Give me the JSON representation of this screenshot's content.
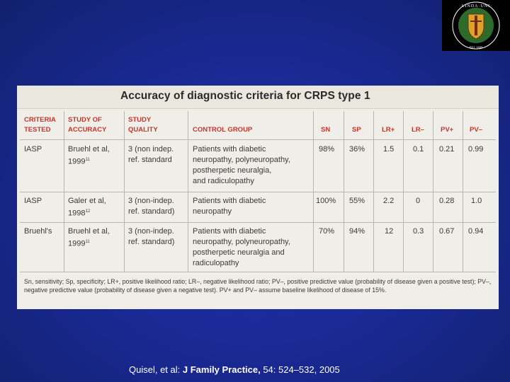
{
  "table": {
    "title": "Accuracy of diagnostic criteria for CRPS type 1",
    "headers": {
      "criteria": [
        "CRITERIA",
        "TESTED"
      ],
      "study": [
        "STUDY OF",
        "ACCURACY"
      ],
      "quality": [
        "STUDY",
        "QUALITY"
      ],
      "control": "CONTROL GROUP",
      "sn": "SN",
      "sp": "SP",
      "lrp": "LR+",
      "lrm": "LR–",
      "pvp": "PV+",
      "pvm": "PV–"
    },
    "rows": [
      {
        "criteria": "IASP",
        "study": [
          "Bruehl et al,",
          "1999"
        ],
        "study_ref": "11",
        "quality": [
          "3 (non indep.",
          "ref. standard"
        ],
        "control": [
          "Patients with diabetic",
          "neuropathy, polyneuropathy,",
          "postherpetic neuralgia,",
          "and radiculopathy"
        ],
        "sn": "98%",
        "sp": "36%",
        "lrp": "1.5",
        "lrm": "0.1",
        "pvp": "0.21",
        "pvm": "0.99"
      },
      {
        "criteria": "IASP",
        "study": [
          "Galer et al,",
          "1998"
        ],
        "study_ref": "12",
        "quality": [
          "3 (non-indep.",
          "ref. standard)"
        ],
        "control": [
          "Patients with diabetic",
          "neuropathy"
        ],
        "sn": "100%",
        "sp": "55%",
        "lrp": "2.2",
        "lrm": "0",
        "pvp": "0.28",
        "pvm": "1.0"
      },
      {
        "criteria": "Bruehl's",
        "study": [
          "Bruehl et al,",
          "1999"
        ],
        "study_ref": "11",
        "quality": [
          "3 (non-indep.",
          "ref. standard)"
        ],
        "control": [
          "Patients with diabetic",
          "neuropathy, polyneuropathy,",
          "postherpetic neuralgia and",
          "radiculopathy"
        ],
        "sn": "70%",
        "sp": "94%",
        "lrp": "12",
        "lrm": "0.3",
        "pvp": "0.67",
        "pvm": "0.94"
      }
    ],
    "footnote": "Sn, sensitivity; Sp, specificity; LR+, positive likelihood ratio; LR–, negative likelihood ratio; PV–, positive predictive value (probability of disease given a positive test); PV–, negative predictive value (probability of disease given a negative test). PV+ and PV– assume baseline likelihood of disease of 15%."
  },
  "citation": {
    "authors": "Quisel, et al: ",
    "journal": "J Family Practice,",
    "details": " 54: 524–532, 2005"
  },
  "logo": {
    "text": "LOMA LINDA UNIVERSITY",
    "colors": {
      "shield": "#e0a12a",
      "green": "#2e6b2a",
      "bg": "#000000"
    }
  },
  "colors": {
    "background": "#1a2a96",
    "header_red": "#c8352b",
    "panel": "#efeee8"
  }
}
